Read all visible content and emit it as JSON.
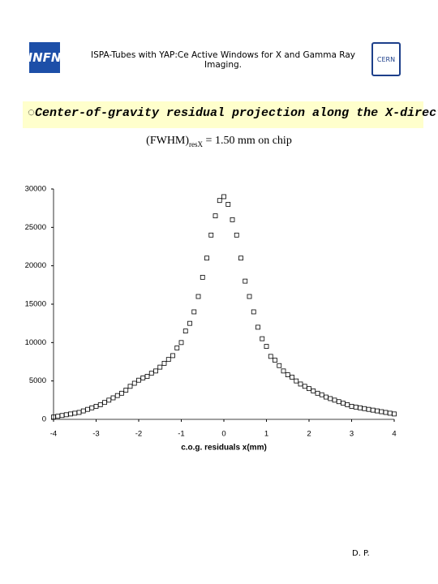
{
  "header": {
    "logo_left": "INFN",
    "title": "ISPA-Tubes with YAP:Ce Active Windows for X and Gamma Ray Imaging.",
    "logo_right": "CERN"
  },
  "banner": "◌Center-of-gravity residual projection along the X-direction",
  "subtitle": {
    "main": "(FWHM)",
    "sub": "resX",
    "rest": " = 1.50 mm on chip"
  },
  "footer": "D. P.",
  "chart_data": {
    "type": "scatter",
    "x": [
      -4.0,
      -3.9,
      -3.8,
      -3.7,
      -3.6,
      -3.5,
      -3.4,
      -3.3,
      -3.2,
      -3.1,
      -3.0,
      -2.9,
      -2.8,
      -2.7,
      -2.6,
      -2.5,
      -2.4,
      -2.3,
      -2.2,
      -2.1,
      -2.0,
      -1.9,
      -1.8,
      -1.7,
      -1.6,
      -1.5,
      -1.4,
      -1.3,
      -1.2,
      -1.1,
      -1.0,
      -0.9,
      -0.8,
      -0.7,
      -0.6,
      -0.5,
      -0.4,
      -0.3,
      -0.2,
      -0.1,
      0.0,
      0.1,
      0.2,
      0.3,
      0.4,
      0.5,
      0.6,
      0.7,
      0.8,
      0.9,
      1.0,
      1.1,
      1.2,
      1.3,
      1.4,
      1.5,
      1.6,
      1.7,
      1.8,
      1.9,
      2.0,
      2.1,
      2.2,
      2.3,
      2.4,
      2.5,
      2.6,
      2.7,
      2.8,
      2.9,
      3.0,
      3.1,
      3.2,
      3.3,
      3.4,
      3.5,
      3.6,
      3.7,
      3.8,
      3.9,
      4.0
    ],
    "values": [
      300,
      400,
      500,
      600,
      700,
      800,
      900,
      1100,
      1300,
      1500,
      1700,
      1900,
      2200,
      2500,
      2800,
      3100,
      3400,
      3800,
      4300,
      4700,
      5100,
      5400,
      5600,
      6000,
      6300,
      6800,
      7300,
      7800,
      8300,
      9300,
      10000,
      11500,
      12500,
      14000,
      16000,
      18500,
      21000,
      24000,
      26500,
      28500,
      29000,
      28000,
      26000,
      24000,
      21000,
      18000,
      16000,
      14000,
      12000,
      10500,
      9500,
      8200,
      7700,
      7000,
      6300,
      5800,
      5500,
      5000,
      4600,
      4300,
      4000,
      3700,
      3400,
      3200,
      2900,
      2700,
      2500,
      2300,
      2100,
      1900,
      1700,
      1600,
      1500,
      1400,
      1300,
      1200,
      1100,
      1000,
      900,
      800,
      700
    ],
    "xlabel": "c.o.g. residuals x(mm)",
    "xlim": [
      -4,
      4
    ],
    "xticks": [
      -4,
      -3,
      -2,
      -1,
      0,
      1,
      2,
      3,
      4
    ],
    "ylim": [
      0,
      30000
    ],
    "yticks": [
      0,
      5000,
      10000,
      15000,
      20000,
      25000,
      30000
    ],
    "marker_color": "#000000"
  }
}
